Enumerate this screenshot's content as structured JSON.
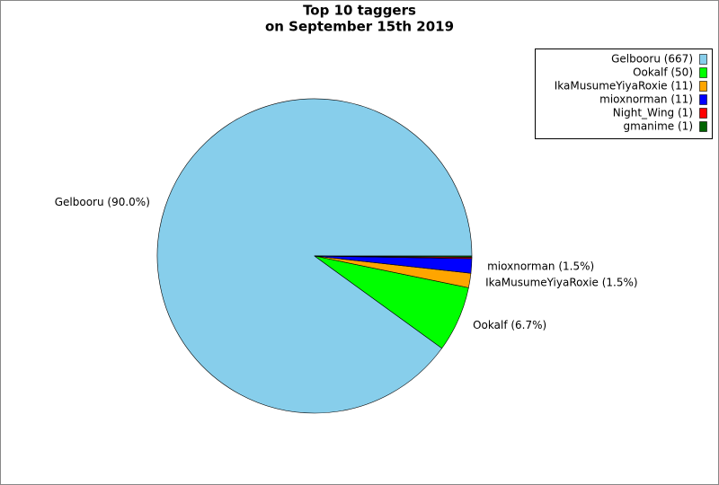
{
  "chart_data": {
    "type": "pie",
    "title": "Top 10 taggers",
    "subtitle": "on September 15th 2019",
    "categories": [
      "Gelbooru",
      "Ookalf",
      "IkaMusumeYiyaRoxie",
      "mioxnorman",
      "Night_Wing",
      "gmanime"
    ],
    "values": [
      667,
      50,
      11,
      11,
      1,
      1
    ],
    "colors": [
      "#87ceeb",
      "#00ff00",
      "#ffa500",
      "#0000ff",
      "#ff0000",
      "#006400"
    ],
    "legend_labels": [
      "Gelbooru (667)",
      "Ookalf (50)",
      "IkaMusumeYiyaRoxie (11)",
      "mioxnorman (11)",
      "Night_Wing (1)",
      "gmanime (1)"
    ],
    "slice_labels": [
      "Gelbooru (90.0%)",
      "Ookalf (6.7%)",
      "IkaMusumeYiyaRoxie (1.5%)",
      "mioxnorman (1.5%)",
      null,
      null
    ],
    "legend_position": "upper right"
  }
}
